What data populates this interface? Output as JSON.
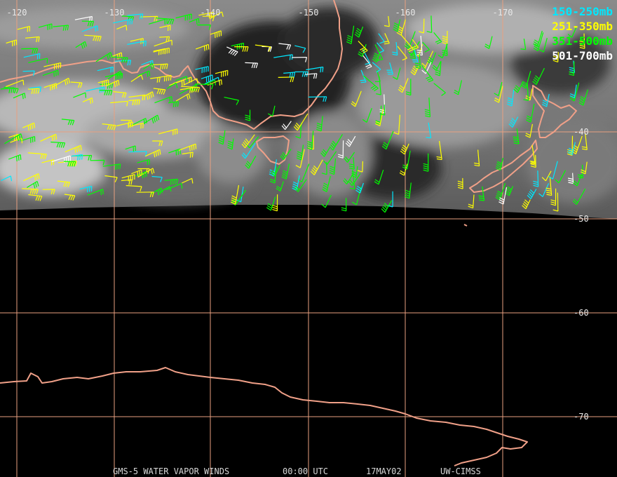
{
  "map": {
    "meridians": [
      {
        "lon": -120,
        "label": "-120"
      },
      {
        "lon": -130,
        "label": "-130"
      },
      {
        "lon": -140,
        "label": "-140"
      },
      {
        "lon": -150,
        "label": "-150"
      },
      {
        "lon": -160,
        "label": "-160"
      },
      {
        "lon": -170,
        "label": "-170"
      }
    ],
    "parallels": [
      {
        "lat": -40,
        "label": "-40"
      },
      {
        "lat": -50,
        "label": "-50"
      },
      {
        "lat": -60,
        "label": "-60"
      },
      {
        "lat": -70,
        "label": "-70"
      }
    ],
    "colors": {
      "grid": "#e8a080",
      "coast": "#f0a088",
      "tick_text": "#e8e8e8",
      "footer_text": "#d8d8d8",
      "space": "#000000"
    }
  },
  "legend": [
    {
      "label": "150-250mb",
      "color": "#00e8ff"
    },
    {
      "label": "251-350mb",
      "color": "#ffff00"
    },
    {
      "label": "351-500mb",
      "color": "#00ff00"
    },
    {
      "label": "501-700mb",
      "color": "#ffffff"
    }
  ],
  "footer": {
    "product": "GMS-5 WATER VAPOR WINDS",
    "time": "00:00 UTC",
    "date": "17MAY02",
    "credit": "UW-CIMSS"
  }
}
